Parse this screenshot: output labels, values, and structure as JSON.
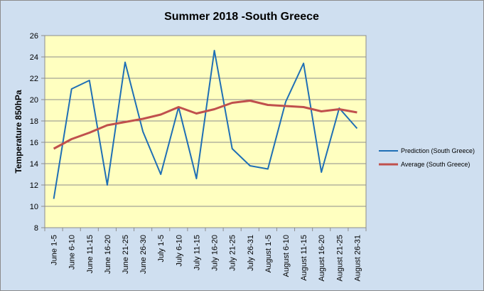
{
  "chart_data": {
    "type": "line",
    "title": "Summer 2018 -South Greece",
    "ylabel": "Temperature 850hPa",
    "xlabel": "",
    "ylim": [
      8,
      26
    ],
    "yticks": [
      8,
      10,
      12,
      14,
      16,
      18,
      20,
      22,
      24,
      26
    ],
    "grid": true,
    "legend_position": "right",
    "categories": [
      "June 1-5",
      "June 6-10",
      "June 11-15",
      "June 16-20",
      "June 21-25",
      "June 26-30",
      "July 1-5",
      "July 6-10",
      "July 11-15",
      "July 16-20",
      "July 21-25",
      "July 26-31",
      "August 1-5",
      "August 6-10",
      "August 11-15",
      "August 16-20",
      "August 21-25",
      "August 26-31"
    ],
    "series": [
      {
        "name": "Prediction (South Greece)",
        "color": "#1f6fb5",
        "values": [
          10.7,
          21.0,
          21.8,
          12.0,
          23.5,
          17.0,
          13.0,
          19.3,
          12.6,
          24.6,
          15.4,
          13.8,
          13.5,
          19.8,
          23.4,
          13.2,
          19.2,
          17.3
        ]
      },
      {
        "name": "Average (South Greece)",
        "color": "#c0504d",
        "values": [
          15.4,
          16.3,
          16.9,
          17.6,
          17.9,
          18.2,
          18.6,
          19.3,
          18.7,
          19.1,
          19.7,
          19.9,
          19.5,
          19.4,
          19.3,
          18.9,
          19.1,
          18.8
        ]
      }
    ]
  }
}
